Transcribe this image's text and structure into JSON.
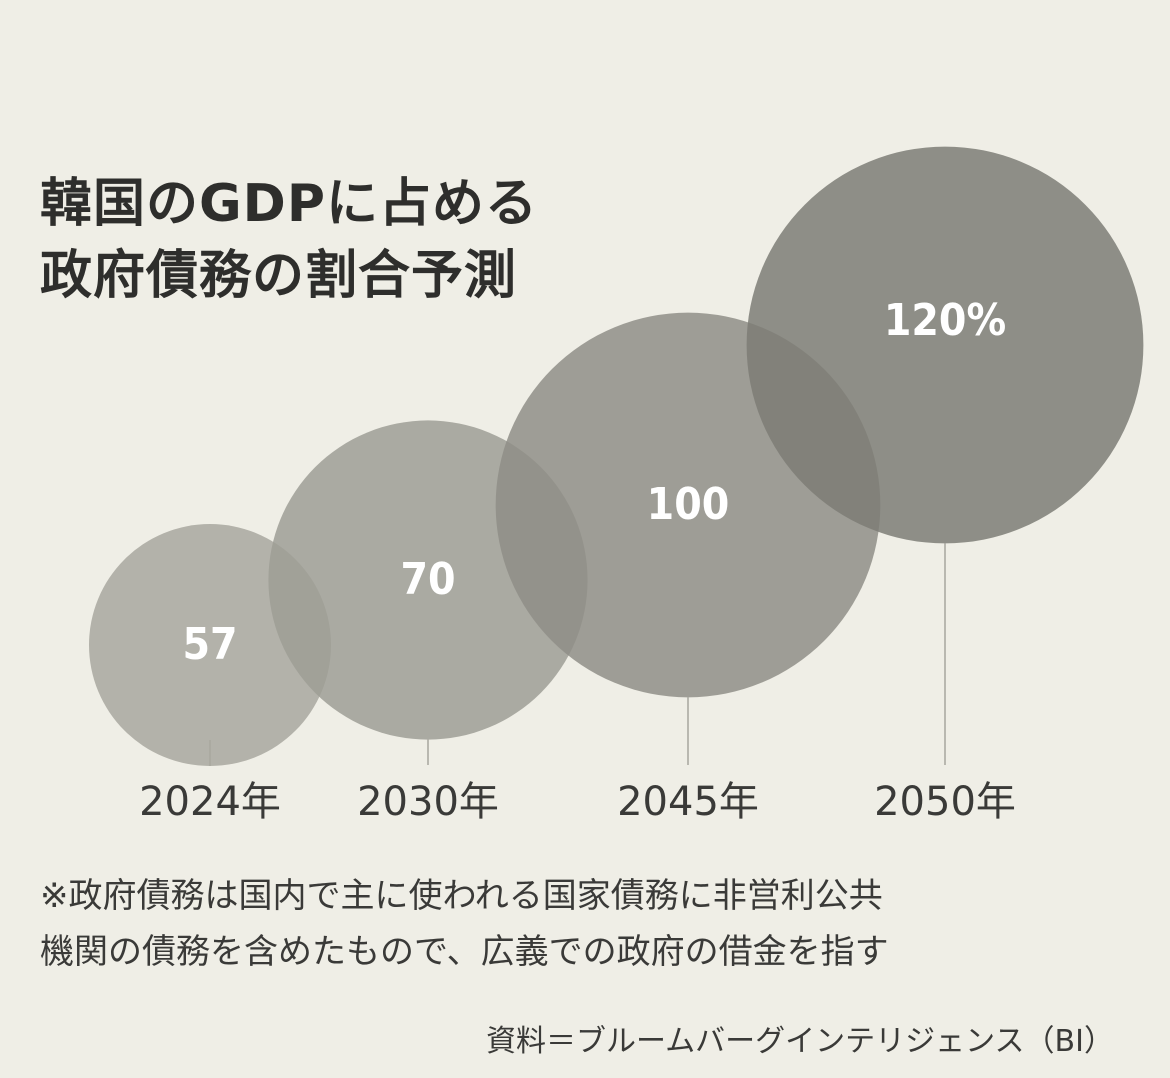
{
  "title_lines": [
    "韓国のGDPに占める",
    "政府債務の割合予測"
  ],
  "chart_data": {
    "type": "bubble",
    "categories": [
      "2024年",
      "2030年",
      "2045年",
      "2050年"
    ],
    "values": [
      57,
      70,
      100,
      120
    ],
    "data_labels": [
      "57",
      "70",
      "100",
      "120%"
    ],
    "unit": "%",
    "bubble_colors": [
      "#a8a79f",
      "#9e9d95",
      "#8f8e87",
      "#7d7c76"
    ],
    "label_color": "#ffffff"
  },
  "note_lines": [
    "※政府債務は国内で主に使われる国家債務に非営利公共",
    "機関の債務を含めたもので、広義での政府の借金を指す"
  ],
  "source": "資料＝ブルームバーグインテリジェンス（BI）"
}
